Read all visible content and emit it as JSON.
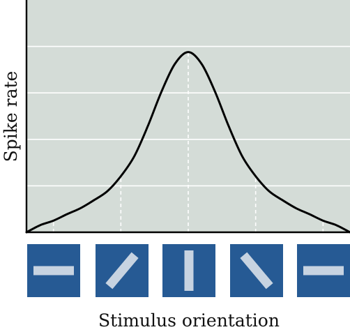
{
  "chart_data": {
    "type": "line",
    "title": "",
    "xlabel": "Stimulus orientation",
    "ylabel": "Spike rate",
    "x_categories": [
      "horizontal-bar",
      "diagonal-bar-45",
      "vertical-bar",
      "diagonal-bar-135",
      "horizontal-bar"
    ],
    "x": [
      0,
      0.5,
      1,
      1.5,
      2,
      2.5,
      3,
      3.5,
      4,
      4.5,
      5,
      5.5,
      6,
      6.5,
      7,
      7.5,
      8,
      8.5,
      9,
      9.5,
      10,
      10.5,
      11,
      11.5,
      12
    ],
    "xlim": [
      0,
      12
    ],
    "series": [
      {
        "values": [
          0.0,
          0.035,
          0.058,
          0.09,
          0.12,
          0.16,
          0.205,
          0.28,
          0.38,
          0.53,
          0.7,
          0.84,
          0.9,
          0.84,
          0.7,
          0.53,
          0.38,
          0.28,
          0.205,
          0.16,
          0.12,
          0.09,
          0.058,
          0.035,
          0.0
        ]
      }
    ],
    "ylim": [
      0,
      1.16
    ],
    "yticks": [
      0,
      0.232,
      0.464,
      0.696,
      0.928,
      1.16
    ],
    "dashed_markers_x": [
      1,
      3.5,
      6,
      8.5,
      11
    ],
    "grid": "horizontal-white",
    "legend": "none",
    "colors": {
      "plot_background": "#d4dcd7",
      "grid": "#ffffff",
      "curve": "#000000",
      "icon_box": "#265a94",
      "icon_bar": "#c7d3e1"
    }
  }
}
